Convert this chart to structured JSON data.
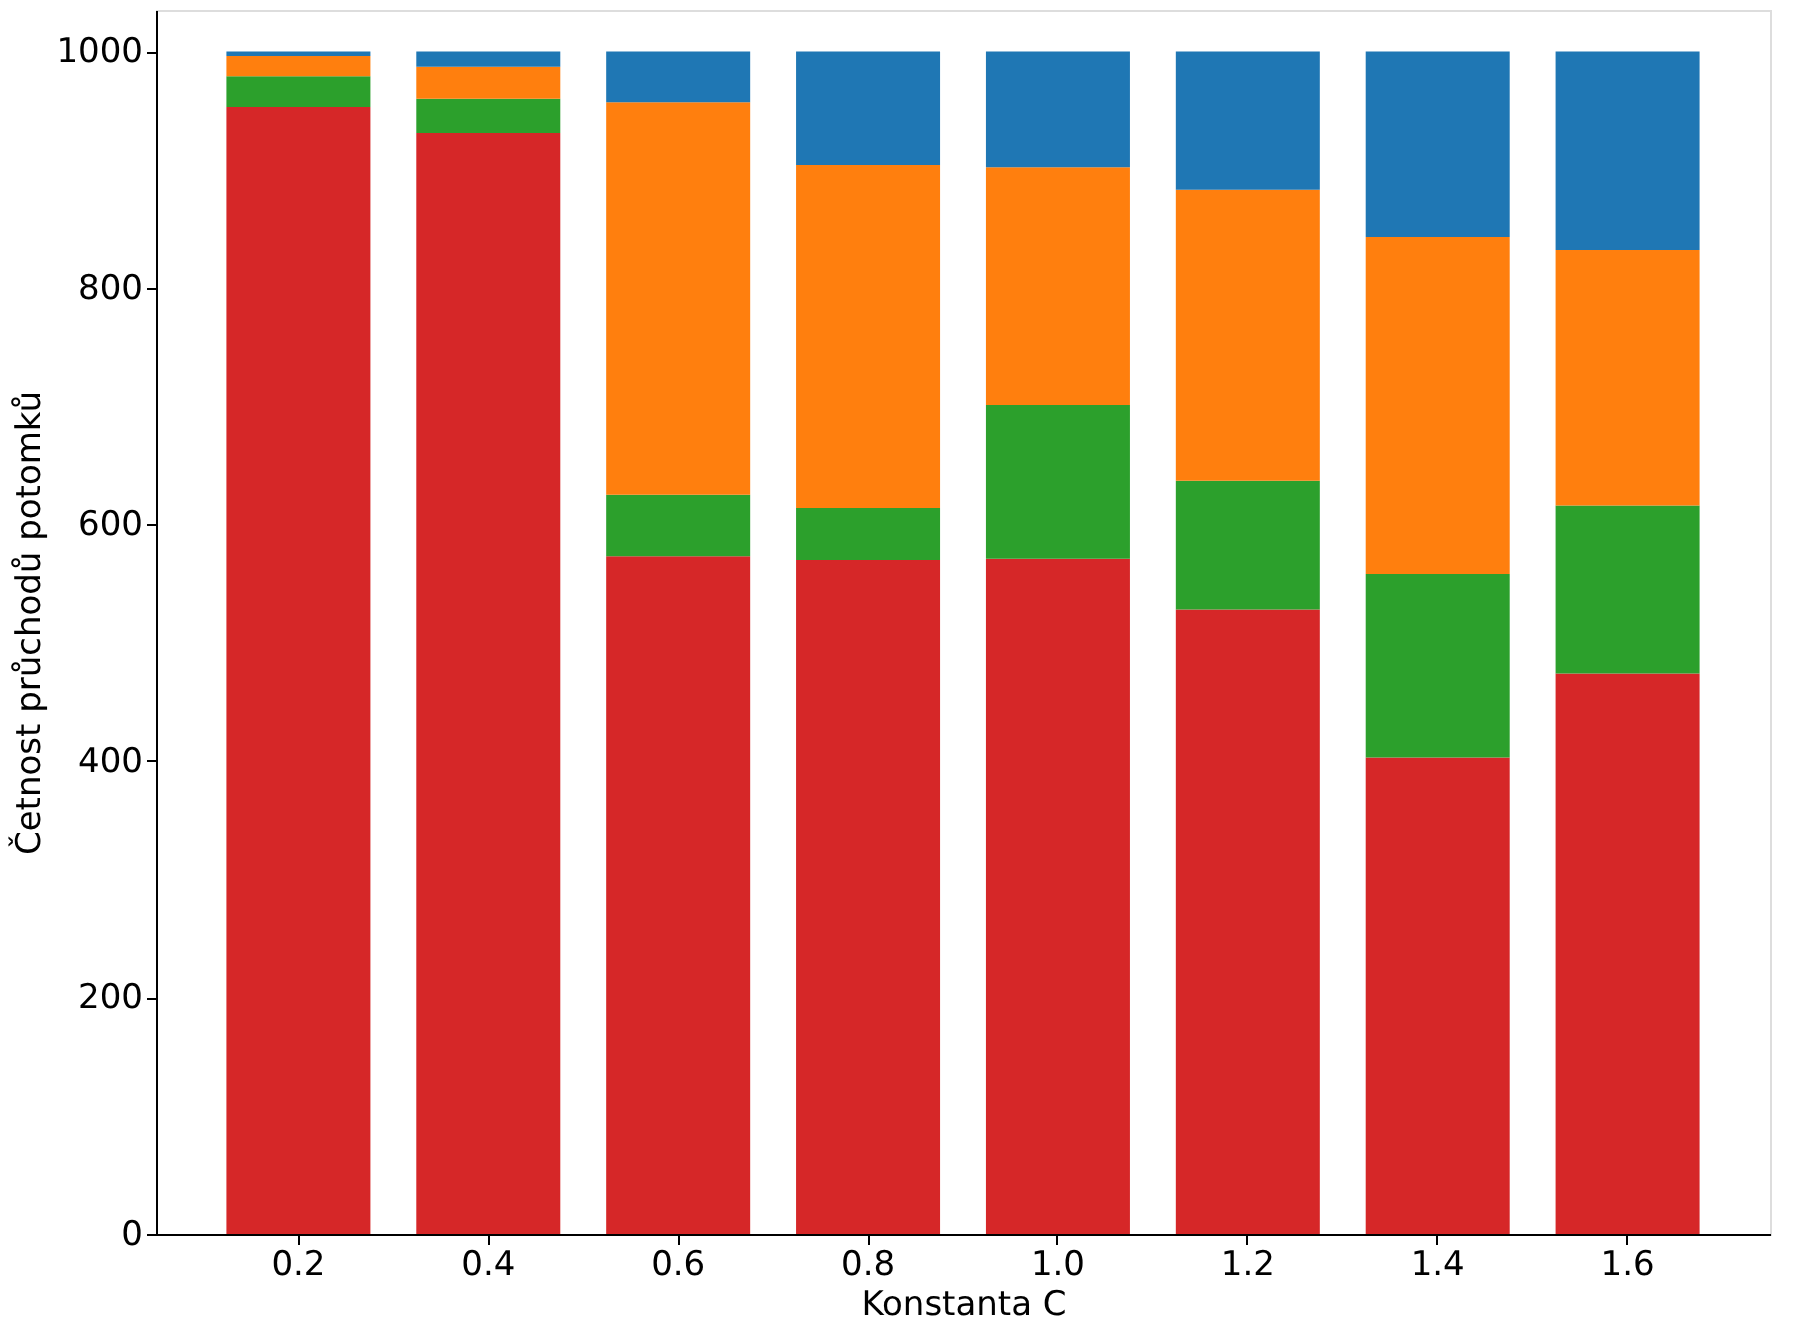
{
  "chart_data": {
    "type": "bar",
    "stacked": true,
    "xlabel": "Konstanta C",
    "ylabel": "Četnost průchodů potomků",
    "categories": [
      "0.2",
      "0.4",
      "0.6",
      "0.8",
      "1.0",
      "1.2",
      "1.4",
      "1.6"
    ],
    "series": [
      {
        "color": "#d62728",
        "values": [
          953,
          931,
          573,
          570,
          571,
          528,
          403,
          474
        ]
      },
      {
        "color": "#2ca02c",
        "values": [
          26,
          29,
          52,
          44,
          130,
          109,
          155,
          142
        ]
      },
      {
        "color": "#ff7f0e",
        "values": [
          17,
          27,
          332,
          290,
          201,
          246,
          285,
          216
        ]
      },
      {
        "color": "#1f77b4",
        "values": [
          4,
          13,
          43,
          96,
          98,
          117,
          157,
          168
        ]
      }
    ],
    "ylim": [
      0,
      1035
    ],
    "yticks": [
      0,
      200,
      400,
      600,
      800,
      1000
    ],
    "grid": false,
    "legend": false
  }
}
